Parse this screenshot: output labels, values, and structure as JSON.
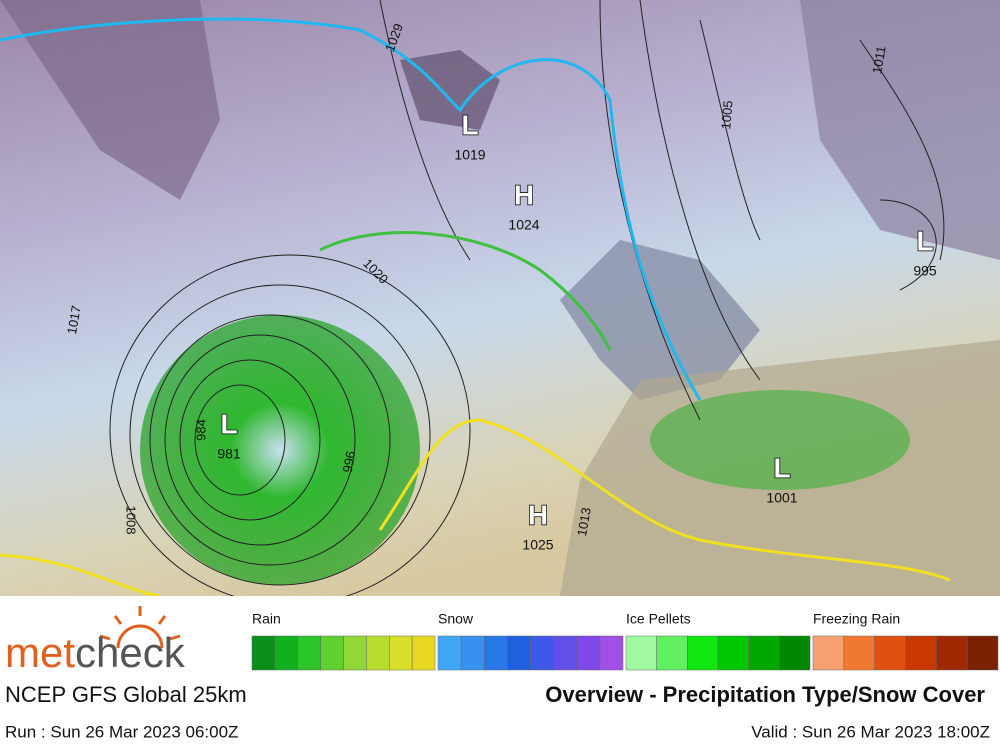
{
  "map": {
    "pressure_centers": [
      {
        "kind": "L",
        "value": "1019"
      },
      {
        "kind": "H",
        "value": "1024"
      },
      {
        "kind": "L",
        "value": "995"
      },
      {
        "kind": "L",
        "value": "981"
      },
      {
        "kind": "H",
        "value": "1025"
      },
      {
        "kind": "L",
        "value": "1001"
      }
    ],
    "isobar_labels": [
      "1029",
      "1020",
      "1017",
      "1005",
      "1011",
      "996",
      "1013",
      "984",
      "1008"
    ]
  },
  "legend": [
    {
      "label": "Rain",
      "colors": [
        "#0a8f1a",
        "#10b020",
        "#2cc62a",
        "#5ed030",
        "#8fd838",
        "#b8dc30",
        "#d8e028",
        "#e8d820"
      ]
    },
    {
      "label": "Snow",
      "colors": [
        "#40a8f8",
        "#3890f0",
        "#2878e8",
        "#2060e0",
        "#4058e8",
        "#6050e8",
        "#8048e8",
        "#a050e8"
      ]
    },
    {
      "label": "Ice Pellets",
      "colors": [
        "#a0f8a0",
        "#60f060",
        "#10e810",
        "#00c800",
        "#00a800",
        "#008800"
      ]
    },
    {
      "label": "Freezing Rain",
      "colors": [
        "#f8a070",
        "#f07830",
        "#e05010",
        "#c83800",
        "#a02800",
        "#782000"
      ]
    }
  ],
  "footer": {
    "brand_a": "met",
    "brand_b": "check",
    "model": "NCEP GFS Global 25km",
    "title": "Overview - Precipitation Type/Snow Cover",
    "run": "Run : Sun 26 Mar 2023 06:00Z",
    "valid": "Valid : Sun 26 Mar 2023 18:00Z"
  }
}
